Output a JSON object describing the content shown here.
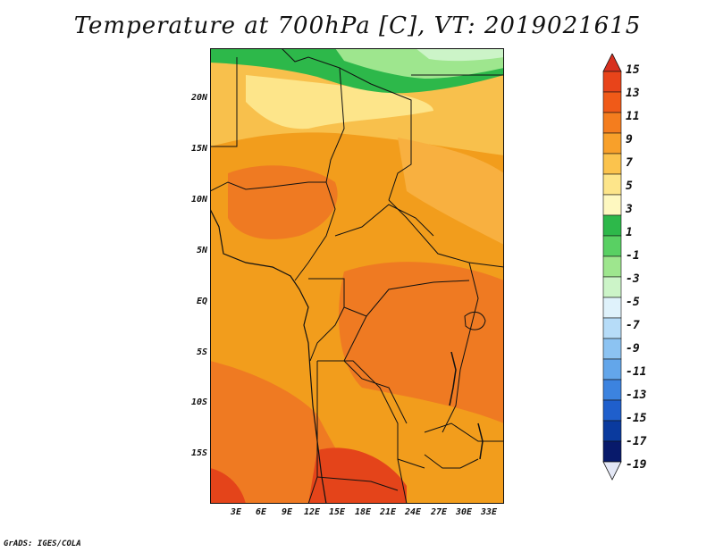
{
  "title": "Temperature at 700hPa [C], VT: 2019021615",
  "credit": "GrADS: IGES/COLA",
  "map": {
    "lat_labels": [
      "20N",
      "15N",
      "10N",
      "5N",
      "EQ",
      "5S",
      "10S",
      "15S"
    ],
    "lon_labels": [
      "3E",
      "6E",
      "9E",
      "12E",
      "15E",
      "18E",
      "21E",
      "24E",
      "27E",
      "30E",
      "33E"
    ]
  },
  "colorbar": {
    "labels": [
      "15",
      "13",
      "11",
      "9",
      "7",
      "5",
      "3",
      "1",
      "-1",
      "-3",
      "-5",
      "-7",
      "-9",
      "-11",
      "-13",
      "-15",
      "-17",
      "-19"
    ],
    "colors": [
      "#d7301f",
      "#e8441a",
      "#f05a18",
      "#f47d1e",
      "#f8a02a",
      "#fbc34d",
      "#fde58a",
      "#fef8c0",
      "#2db84a",
      "#59d063",
      "#9ee68e",
      "#ccf4c8",
      "#dff2fb",
      "#b6dcf8",
      "#8cc3f2",
      "#63a6ea",
      "#3c83df",
      "#1f5fcc",
      "#0a3a9e",
      "#081a6b",
      "#e4e8f6"
    ]
  }
}
